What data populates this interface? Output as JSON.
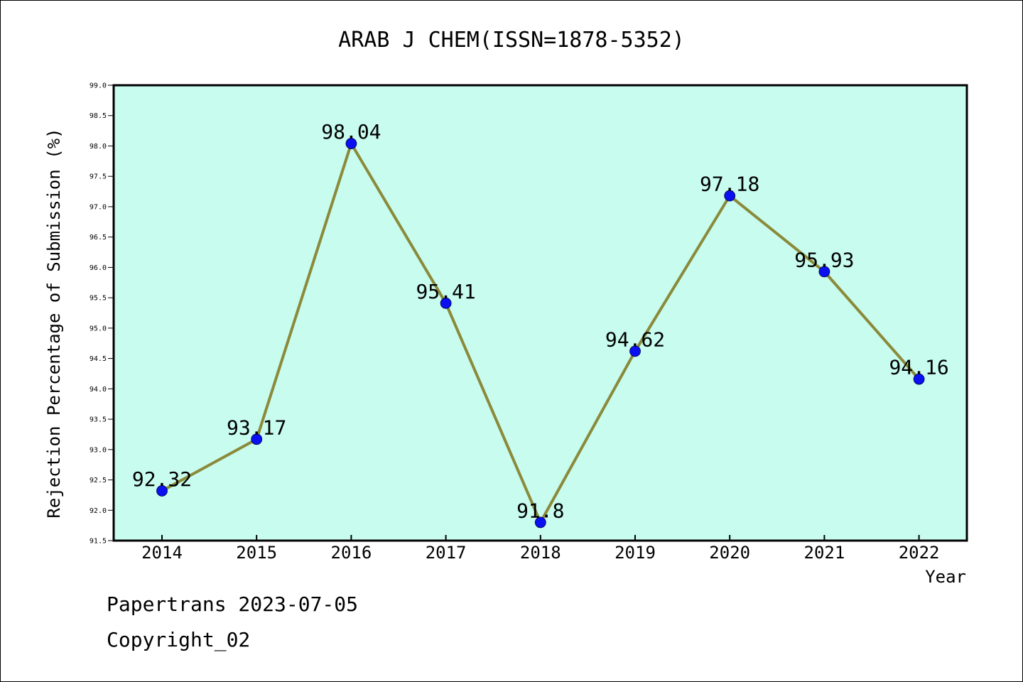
{
  "chart_data": {
    "type": "line",
    "title": "ARAB J CHEM(ISSN=1878-5352)",
    "xlabel": "Year",
    "ylabel": "Rejection Percentage of Submission (%)",
    "categories": [
      "2014",
      "2015",
      "2016",
      "2017",
      "2018",
      "2019",
      "2020",
      "2021",
      "2022"
    ],
    "series": [
      {
        "values": [
          92.32,
          93.17,
          98.04,
          95.41,
          91.8,
          94.62,
          97.18,
          95.93,
          94.16
        ],
        "labels": [
          "92.32",
          "93.17",
          "98.04",
          "95.41",
          "91.8",
          "94.62",
          "97.18",
          "95.93",
          "94.16"
        ]
      }
    ],
    "ylim": [
      91.5,
      99.0
    ],
    "yticks": [
      "91.5",
      "92.0",
      "92.5",
      "93.0",
      "93.5",
      "94.0",
      "94.5",
      "95.0",
      "95.5",
      "96.0",
      "96.5",
      "97.0",
      "97.5",
      "98.0",
      "98.5",
      "99.0"
    ],
    "grid": false,
    "colors": {
      "plot_background": "#c8fcee",
      "line": "#8a8a3a",
      "marker": "#0a10f0",
      "axis": "#000000"
    }
  },
  "footer": {
    "watermark": "Papertrans 2023-07-05",
    "copyright": "Copyright_02"
  }
}
